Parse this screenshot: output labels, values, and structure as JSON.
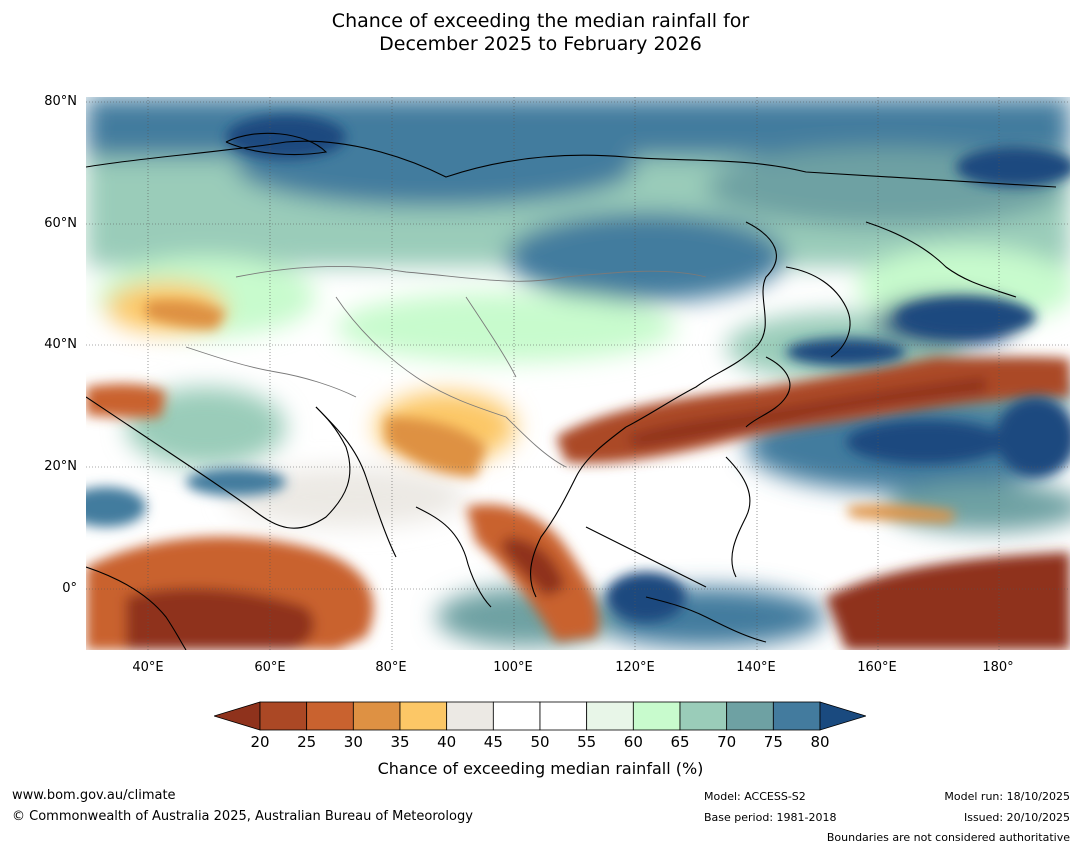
{
  "title": {
    "line1": "Chance of exceeding the median rainfall for",
    "line2": "December 2025 to February 2026"
  },
  "axes": {
    "y_ticks": [
      "80°N",
      "60°N",
      "40°N",
      "20°N",
      "0°"
    ],
    "x_ticks": [
      "40°E",
      "60°E",
      "80°E",
      "100°E",
      "120°E",
      "140°E",
      "160°E",
      "180°"
    ]
  },
  "colorbar": {
    "labels": [
      "20",
      "25",
      "30",
      "35",
      "40",
      "45",
      "50",
      "55",
      "60",
      "65",
      "70",
      "75",
      "80"
    ],
    "colors": [
      "#8f321c",
      "#ab4825",
      "#c9622f",
      "#de9143",
      "#fcc766",
      "#ece9e4",
      "#ffffff",
      "#ffffff",
      "#e8f6e8",
      "#c8fbcd",
      "#9accb9",
      "#6ea1a3",
      "#437b9e",
      "#1a4a7f"
    ],
    "title": "Chance of exceeding median rainfall (%)"
  },
  "footer": {
    "website": "www.bom.gov.au/climate",
    "copyright": "© Commonwealth of Australia 2025, Australian Bureau of Meteorology",
    "model": "Model: ACCESS-S2",
    "base_period": "Base period: 1981-2018",
    "model_run": "Model run: 18/10/2025",
    "issued": "Issued: 20/10/2025",
    "disclaimer": "Boundaries are not considered authoritative"
  }
}
